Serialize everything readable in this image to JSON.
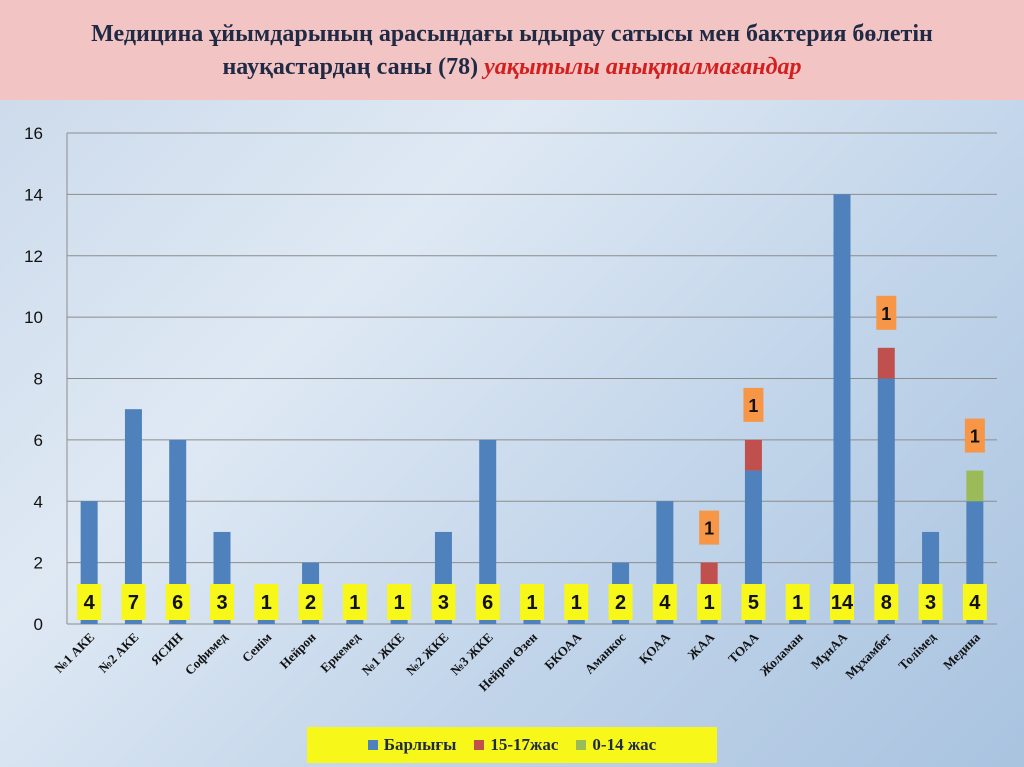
{
  "slide": {
    "title_main": "Медицина ұйымдарының арасындағы ыдырау сатысы мен бактерия бөлетін науқастардаң саны (78)",
    "title_highlight": "уақытылы анықталмағандар"
  },
  "chart_data": {
    "type": "bar",
    "stacked": true,
    "categories": [
      "№1 АКЕ",
      "№2 АКЕ",
      "ЯСИН",
      "Софимед",
      "Сенім",
      "Нейрон",
      "Еркемед",
      "№1 ЖКЕ",
      "№2 ЖКЕ",
      "№3 ЖКЕ",
      "Нейрон Өзен",
      "БКОАА",
      "Аманкос",
      "ҚОАА",
      "ЖАА",
      "ТОАА",
      "Жоламан",
      "МұнАА",
      "Мұхамбет",
      "Толімед",
      "Медина"
    ],
    "series": [
      {
        "name": "Барлығы",
        "color": "#4f81bd",
        "values": [
          4,
          7,
          6,
          3,
          1,
          2,
          1,
          1,
          3,
          6,
          1,
          1,
          2,
          4,
          1,
          5,
          1,
          14,
          8,
          3,
          4
        ]
      },
      {
        "name": "15-17жас",
        "color": "#c0504d",
        "values": [
          0,
          0,
          0,
          0,
          0,
          0,
          0,
          0,
          0,
          0,
          0,
          0,
          0,
          0,
          1,
          1,
          0,
          0,
          1,
          0,
          0
        ]
      },
      {
        "name": "0-14 жас",
        "color": "#9bbb59",
        "values": [
          0,
          0,
          0,
          0,
          0,
          0,
          0,
          0,
          0,
          0,
          0,
          0,
          0,
          0,
          0,
          0,
          0,
          0,
          0,
          0,
          1
        ]
      }
    ],
    "total_labels": [
      "4",
      "7",
      "6",
      "3",
      "1",
      "2",
      "1",
      "1",
      "3",
      "6",
      "1",
      "1",
      "2",
      "4",
      "1",
      "5",
      "1",
      "14",
      "8",
      "3",
      "4"
    ],
    "annotations": [
      {
        "category": "ЖАА",
        "text": "1"
      },
      {
        "category": "ТОАА",
        "text": "1"
      },
      {
        "category": "Мұхамбет",
        "text": "1"
      },
      {
        "category": "Медина",
        "text": "1"
      }
    ],
    "ylim": [
      0,
      16
    ],
    "yticks": [
      0,
      2,
      4,
      6,
      8,
      10,
      12,
      14,
      16
    ],
    "grid": true,
    "legend_position": "bottom"
  }
}
